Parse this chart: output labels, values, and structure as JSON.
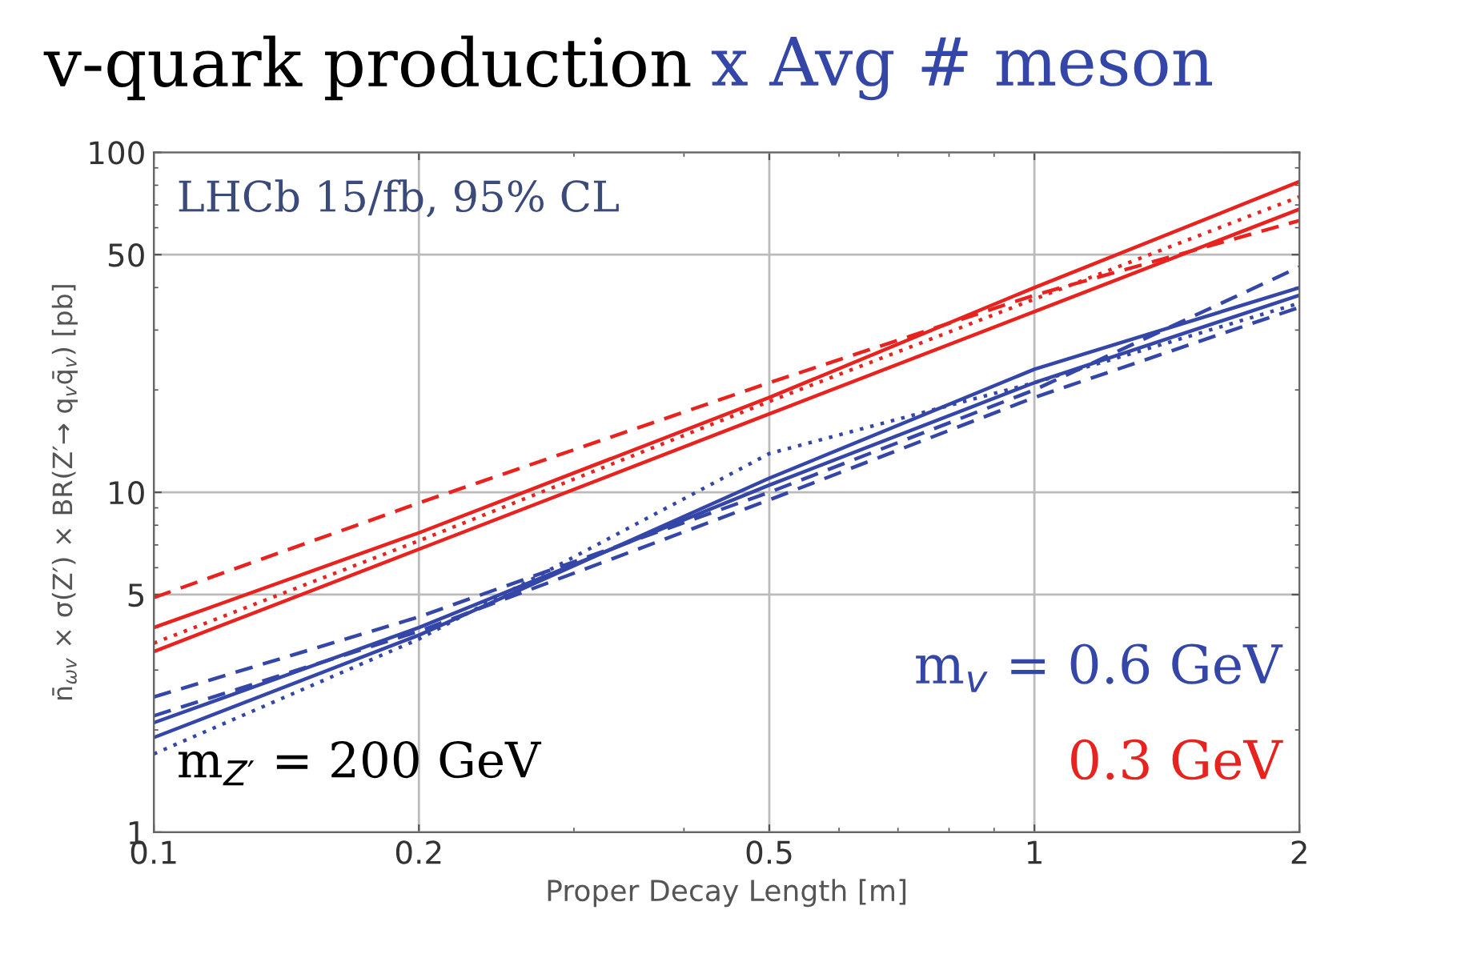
{
  "chart_data": {
    "type": "line",
    "title": "v-quark production",
    "subtitle": "x Avg # meson",
    "xlabel": "Proper Decay Length [m]",
    "ylabel": "n̄$_{ωv}$ × σ(Z′) × BR(Z′→ q$_{v}$q̄$_{v}$) [pb]",
    "x": [
      0.1,
      0.2,
      0.5,
      1,
      2
    ],
    "series": [
      {
        "color": "#e8231f",
        "line_style": "solid",
        "values": [
          4.0,
          7.6,
          19,
          40,
          82
        ]
      },
      {
        "color": "#e8231f",
        "line_style": "solid",
        "values": [
          3.4,
          6.8,
          17,
          34,
          68
        ]
      },
      {
        "color": "#e8231f",
        "line_style": "dashed",
        "values": [
          4.9,
          9.3,
          21,
          38,
          63
        ]
      },
      {
        "color": "#e8231f",
        "line_style": "dotted",
        "values": [
          3.6,
          7.2,
          18.5,
          37,
          74
        ]
      },
      {
        "color": "#3446a8",
        "line_style": "solid",
        "values": [
          2.1,
          4.0,
          10.5,
          21,
          38
        ]
      },
      {
        "color": "#3446a8",
        "line_style": "solid",
        "values": [
          1.9,
          3.8,
          11,
          23,
          40
        ]
      },
      {
        "color": "#3446a8",
        "line_style": "dashed",
        "values": [
          2.5,
          4.3,
          10,
          20,
          46
        ]
      },
      {
        "color": "#3446a8",
        "line_style": "dashed",
        "values": [
          2.2,
          3.9,
          9.5,
          19,
          35
        ]
      },
      {
        "color": "#3446a8",
        "line_style": "dotted",
        "values": [
          1.7,
          3.7,
          13,
          21,
          36
        ]
      }
    ],
    "log": "xy",
    "xlim": [
      0.1,
      2
    ],
    "ylim": [
      1,
      100
    ],
    "xticks": [
      0.1,
      0.2,
      0.5,
      1,
      2
    ],
    "yticks": [
      1,
      5,
      10,
      50,
      100
    ],
    "grid": true,
    "annotations": [
      "LHCb 15/fb, 95% CL",
      "m$_{Z′}$ = 200 GeV",
      "m$_{v}$ = 0.6 GeV",
      "0.3 GeV"
    ]
  }
}
